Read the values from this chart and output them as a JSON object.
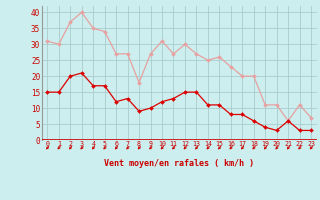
{
  "hours": [
    0,
    1,
    2,
    3,
    4,
    5,
    6,
    7,
    8,
    9,
    10,
    11,
    12,
    13,
    14,
    15,
    16,
    17,
    18,
    19,
    20,
    21,
    22,
    23
  ],
  "wind_avg": [
    15,
    15,
    20,
    21,
    17,
    17,
    12,
    13,
    9,
    10,
    12,
    13,
    15,
    15,
    11,
    11,
    8,
    8,
    6,
    4,
    3,
    6,
    3,
    3
  ],
  "wind_gust": [
    31,
    30,
    37,
    40,
    35,
    34,
    27,
    27,
    18,
    27,
    31,
    27,
    30,
    27,
    25,
    26,
    23,
    20,
    20,
    11,
    11,
    6,
    11,
    7
  ],
  "color_avg": "#dd0000",
  "color_gust": "#e8a0a0",
  "bg_color": "#cceeee",
  "grid_color": "#aacccc",
  "xlabel": "Vent moyen/en rafales ( km/h )",
  "xlabel_color": "#cc0000",
  "tick_color": "#cc0000",
  "arrow_color": "#cc0000",
  "ylim": [
    0,
    42
  ],
  "yticks": [
    0,
    5,
    10,
    15,
    20,
    25,
    30,
    35,
    40
  ],
  "figsize": [
    3.2,
    2.0
  ],
  "dpi": 100
}
